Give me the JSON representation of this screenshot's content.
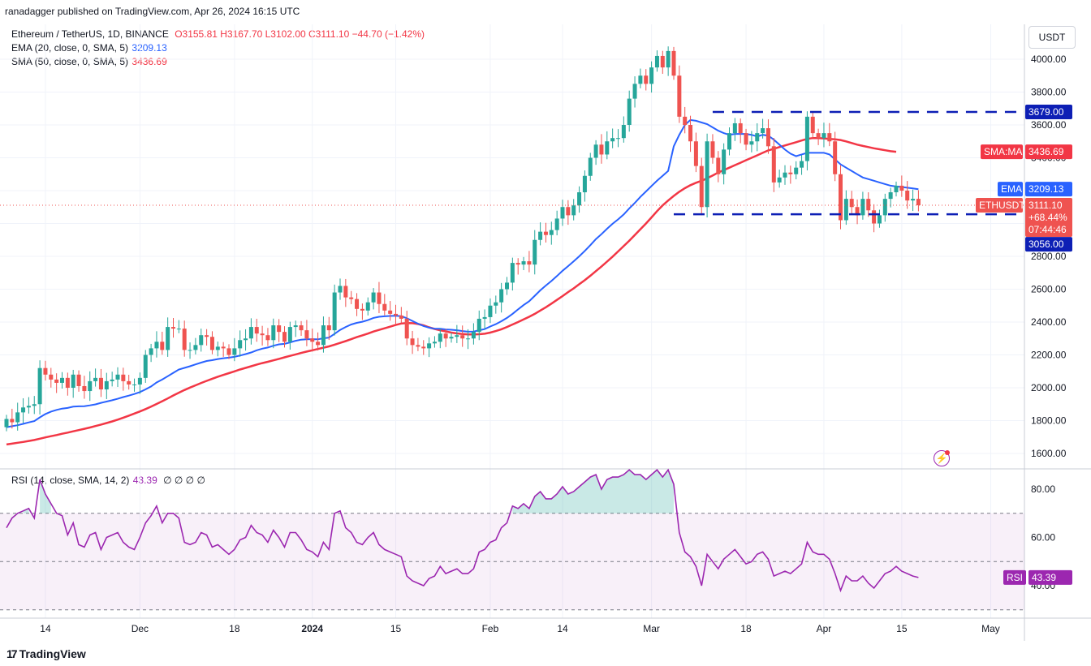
{
  "header": {
    "published": "ranadagger published on TradingView.com, Apr 26, 2024 16:15 UTC"
  },
  "legend": {
    "symbol": "Ethereum / TetherUS, 1D, BINANCE",
    "ohlc": "O3155.81 H3167.70 L3102.00 C3111.10 −44.70 (−1.42%)",
    "ema": "EMA (20, close, 0, SMA, 5)",
    "ema_value": "3209.13",
    "sma": "SMA (50, close, 0, SMA, 5)",
    "sma_value": "3436.69",
    "rsi": "RSI (14, close, SMA, 14, 2)",
    "rsi_value": "43.39",
    "rsi_extra": "∅ ∅ ∅ ∅"
  },
  "currency_button": "USDT",
  "price_badges": {
    "sma_label": "SMA:MA",
    "sma_value": "3436.69",
    "ema_label": "EMA",
    "ema_value": "3209.13",
    "last_label": "ETHUSDT",
    "last_value": "3111.10",
    "last_change": "+68.44%",
    "countdown": "07:44:46",
    "resistance": "3679.00",
    "support": "3056.00",
    "rsi_label": "RSI",
    "rsi_value": "43.39"
  },
  "footer": {
    "brand": "TradingView"
  },
  "colors": {
    "up": "#26a69a",
    "down": "#ef5350",
    "ema": "#2962ff",
    "sma": "#f23645",
    "rsi": "#9c27b0",
    "level": "#0d1fb5",
    "grid": "#f0f3fa"
  },
  "chart_data": {
    "type": "candlestick",
    "price_axis": {
      "ticks": [
        "4000.00",
        "3800.00",
        "3600.00",
        "3400.00",
        "3200.00",
        "3000.00",
        "2800.00",
        "2600.00",
        "2400.00",
        "2200.00",
        "2000.00",
        "1800.00",
        "1600.00"
      ],
      "range": [
        1580,
        4150
      ]
    },
    "rsi_axis": {
      "ticks": [
        "80.00",
        "60.00",
        "40.00"
      ],
      "range": [
        28,
        90
      ],
      "overbought": 70,
      "oversold": 30
    },
    "x_axis": {
      "labels": [
        {
          "text": "14",
          "day": 7
        },
        {
          "text": "Dec",
          "day": 24
        },
        {
          "text": "18",
          "day": 41
        },
        {
          "text": "2024",
          "day": 55
        },
        {
          "text": "15",
          "day": 70
        },
        {
          "text": "Feb",
          "day": 87
        },
        {
          "text": "14",
          "day": 100
        },
        {
          "text": "Mar",
          "day": 116
        },
        {
          "text": "18",
          "day": 133
        },
        {
          "text": "Apr",
          "day": 147
        },
        {
          "text": "15",
          "day": 161
        },
        {
          "text": "May",
          "day": 177
        }
      ]
    },
    "levels": [
      {
        "value": 3679,
        "label": "3679.00"
      },
      {
        "value": 3056,
        "label": "3056.00"
      }
    ],
    "closes": [
      1810,
      1790,
      1850,
      1880,
      1890,
      1900,
      2120,
      2080,
      2050,
      2030,
      2060,
      2000,
      2080,
      2010,
      1980,
      2040,
      2060,
      1990,
      2040,
      2050,
      2080,
      2040,
      2020,
      2020,
      2060,
      2200,
      2240,
      2280,
      2230,
      2370,
      2360,
      2360,
      2230,
      2230,
      2260,
      2320,
      2310,
      2230,
      2250,
      2240,
      2200,
      2240,
      2290,
      2300,
      2370,
      2330,
      2320,
      2290,
      2380,
      2340,
      2280,
      2370,
      2380,
      2350,
      2300,
      2280,
      2260,
      2380,
      2350,
      2580,
      2620,
      2550,
      2540,
      2480,
      2470,
      2520,
      2580,
      2510,
      2470,
      2450,
      2440,
      2420,
      2300,
      2260,
      2250,
      2240,
      2270,
      2280,
      2330,
      2300,
      2310,
      2320,
      2300,
      2300,
      2340,
      2420,
      2430,
      2500,
      2520,
      2600,
      2640,
      2760,
      2750,
      2770,
      2750,
      2900,
      2950,
      2930,
      2960,
      3030,
      3100,
      3050,
      3110,
      3190,
      3290,
      3400,
      3480,
      3420,
      3500,
      3520,
      3520,
      3600,
      3760,
      3850,
      3900,
      3850,
      3950,
      4020,
      3950,
      4050,
      3900,
      3650,
      3600,
      3500,
      3350,
      3100,
      3500,
      3400,
      3300,
      3450,
      3550,
      3610,
      3550,
      3480,
      3500,
      3550,
      3580,
      3470,
      3250,
      3280,
      3310,
      3300,
      3340,
      3380,
      3650,
      3550,
      3520,
      3550,
      3500,
      3300,
      3020,
      3150,
      3100,
      3050,
      3150,
      3080,
      3000,
      3050,
      3150,
      3190,
      3230,
      3200,
      3140,
      3150,
      3111.1
    ],
    "ema": [
      1760,
      1766,
      1772,
      1780,
      1789,
      1797,
      1820,
      1840,
      1855,
      1865,
      1873,
      1877,
      1885,
      1887,
      1888,
      1893,
      1899,
      1908,
      1916,
      1924,
      1933,
      1943,
      1952,
      1962,
      1974,
      1990,
      2008,
      2032,
      2050,
      2070,
      2091,
      2111,
      2121,
      2131,
      2142,
      2153,
      2163,
      2168,
      2175,
      2180,
      2183,
      2188,
      2196,
      2205,
      2215,
      2228,
      2238,
      2245,
      2256,
      2264,
      2267,
      2276,
      2286,
      2293,
      2295,
      2296,
      2295,
      2301,
      2305,
      2328,
      2352,
      2370,
      2385,
      2395,
      2402,
      2412,
      2425,
      2432,
      2435,
      2437,
      2438,
      2436,
      2423,
      2407,
      2390,
      2376,
      2366,
      2359,
      2359,
      2355,
      2353,
      2350,
      2345,
      2341,
      2342,
      2350,
      2357,
      2373,
      2387,
      2405,
      2425,
      2450,
      2477,
      2503,
      2527,
      2560,
      2593,
      2622,
      2650,
      2680,
      2712,
      2740,
      2770,
      2800,
      2833,
      2868,
      2905,
      2935,
      2968,
      2998,
      3025,
      3055,
      3092,
      3125,
      3162,
      3195,
      3228,
      3260,
      3290,
      3320,
      3470,
      3540,
      3600,
      3630,
      3625,
      3615,
      3605,
      3585,
      3565,
      3550,
      3540,
      3545,
      3545,
      3545,
      3540,
      3530,
      3540,
      3535,
      3510,
      3480,
      3450,
      3425,
      3410,
      3420,
      3430,
      3430,
      3430,
      3430,
      3420,
      3390,
      3360,
      3340,
      3320,
      3300,
      3280,
      3270,
      3260,
      3250,
      3240,
      3230,
      3225,
      3222,
      3218,
      3214,
      3209.13
    ],
    "sma": [
      1655,
      1660,
      1665,
      1670,
      1676,
      1682,
      1690,
      1698,
      1705,
      1712,
      1720,
      1727,
      1735,
      1742,
      1750,
      1758,
      1767,
      1776,
      1785,
      1795,
      1806,
      1818,
      1830,
      1843,
      1856,
      1870,
      1885,
      1901,
      1918,
      1935,
      1953,
      1970,
      1986,
      2001,
      2015,
      2029,
      2042,
      2055,
      2067,
      2078,
      2089,
      2100,
      2111,
      2121,
      2131,
      2141,
      2150,
      2158,
      2167,
      2176,
      2185,
      2194,
      2203,
      2212,
      2220,
      2228,
      2236,
      2244,
      2252,
      2262,
      2273,
      2284,
      2296,
      2308,
      2319,
      2330,
      2342,
      2352,
      2362,
      2372,
      2382,
      2391,
      2394,
      2393,
      2388,
      2380,
      2368,
      2358,
      2350,
      2343,
      2336,
      2331,
      2327,
      2325,
      2325,
      2326,
      2329,
      2336,
      2345,
      2356,
      2370,
      2385,
      2400,
      2416,
      2432,
      2450,
      2470,
      2490,
      2512,
      2535,
      2558,
      2582,
      2605,
      2630,
      2655,
      2682,
      2710,
      2738,
      2768,
      2798,
      2830,
      2862,
      2895,
      2930,
      2965,
      3000,
      3037,
      3075,
      3110,
      3140,
      3168,
      3193,
      3215,
      3233,
      3248,
      3260,
      3275,
      3292,
      3310,
      3325,
      3340,
      3355,
      3370,
      3385,
      3400,
      3415,
      3430,
      3445,
      3455,
      3465,
      3475,
      3485,
      3495,
      3505,
      3515,
      3520,
      3520,
      3518,
      3515,
      3512,
      3508,
      3500,
      3490,
      3480,
      3472,
      3465,
      3458,
      3452,
      3446,
      3440,
      3436.69
    ],
    "rsi": [
      64,
      68,
      70,
      71,
      72,
      68,
      84,
      78,
      74,
      70,
      69,
      61,
      66,
      57,
      56,
      61,
      62,
      55,
      60,
      61,
      62,
      58,
      56,
      55,
      60,
      66,
      69,
      73,
      66,
      70,
      70,
      68,
      58,
      57,
      58,
      62,
      61,
      56,
      57,
      55,
      53,
      55,
      59,
      60,
      65,
      62,
      61,
      58,
      63,
      60,
      56,
      62,
      62,
      59,
      55,
      54,
      52,
      58,
      55,
      70,
      71,
      64,
      62,
      58,
      57,
      60,
      62,
      57,
      55,
      54,
      53,
      52,
      44,
      42,
      41,
      40,
      43,
      44,
      48,
      45,
      46,
      47,
      45,
      45,
      47,
      54,
      55,
      58,
      59,
      64,
      66,
      73,
      72,
      74,
      72,
      77,
      79,
      76,
      76,
      78,
      81,
      78,
      79,
      81,
      83,
      85,
      86,
      80,
      84,
      85,
      85,
      86,
      88,
      86,
      86,
      84,
      86,
      88,
      85,
      88,
      82,
      62,
      54,
      52,
      48,
      40,
      53,
      50,
      47,
      51,
      53,
      55,
      52,
      49,
      50,
      53,
      54,
      51,
      44,
      45,
      46,
      45,
      47,
      49,
      58,
      54,
      53,
      53,
      51,
      45,
      38,
      44,
      42,
      42,
      44,
      41,
      39,
      42,
      45,
      46,
      48,
      46,
      45,
      44,
      43.39
    ]
  }
}
